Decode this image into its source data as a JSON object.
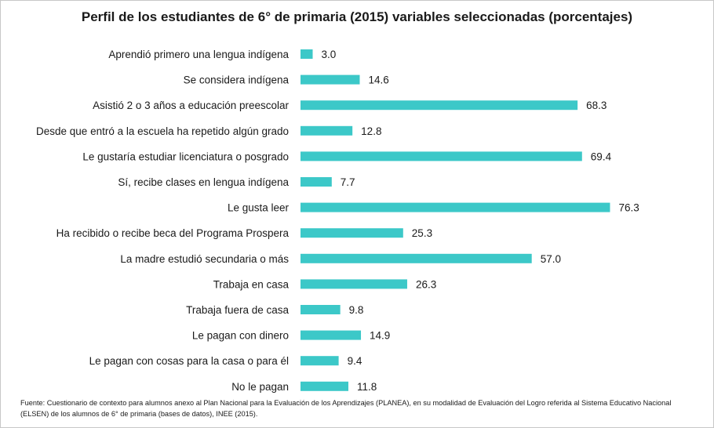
{
  "chart_data": {
    "type": "bar",
    "orientation": "horizontal",
    "title": "Perfil de los estudiantes de 6° de primaria (2015) variables seleccionadas (porcentajes)",
    "categories": [
      "Aprendió primero una lengua indígena",
      "Se considera indígena",
      "Asistió 2 o 3 años a educación preescolar",
      "Desde que entró a la escuela ha repetido algún grado",
      "Le gustaría estudiar licenciatura o posgrado",
      "Sí, recibe clases en lengua indígena",
      "Le gusta leer",
      "Ha recibido o recibe beca del Programa Prospera",
      "La madre estudió secundaria o más",
      "Trabaja en casa",
      "Trabaja fuera de casa",
      "Le pagan con dinero",
      "Le pagan con cosas para la casa o para él",
      "No le pagan"
    ],
    "values": [
      3.0,
      14.6,
      68.3,
      12.8,
      69.4,
      7.7,
      76.3,
      25.3,
      57.0,
      26.3,
      9.8,
      14.9,
      9.4,
      11.8
    ],
    "value_labels": [
      "3.0",
      "14.6",
      "68.3",
      "12.8",
      "69.4",
      "7.7",
      "76.3",
      "25.3",
      "57.0",
      "26.3",
      "9.8",
      "14.9",
      "9.4",
      "11.8"
    ],
    "bar_color": "#3cc8c8",
    "grid": false,
    "legend": "none"
  },
  "source_note": "Fuente: Cuestionario de contexto para alumnos anexo al Plan Nacional para la Evaluación de los Aprendizajes (PLANEA), en su modalidad de Evaluación del Logro referida al Sistema Educativo Nacional (ELSEN) de los alumnos de 6° de primaria (bases de datos), INEE (2015)."
}
